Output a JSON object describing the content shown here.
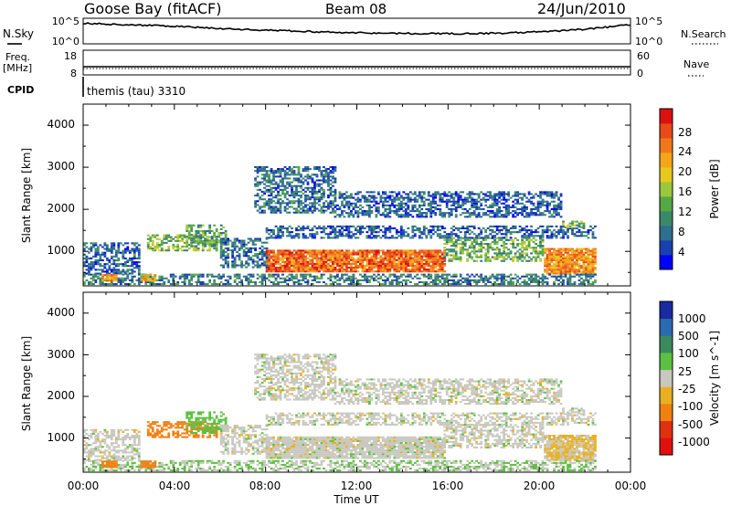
{
  "header": {
    "station": "Goose Bay (fitACF)",
    "beam": "Beam 08",
    "date": "24/Jun/2010"
  },
  "status_panel": {
    "nsky_label": "N.Sky",
    "nsky_ticks": [
      "10^5",
      "10^0"
    ],
    "nsearch_label": "N.Search",
    "nsearch_ticks": [
      "10^5",
      "10^0"
    ],
    "freq_label": "Freq.",
    "freq_unit": "[MHz]",
    "freq_ticks": [
      "18",
      "8"
    ],
    "nave_label": "Nave",
    "nave_ticks": [
      "60",
      "0"
    ],
    "cpid_label": "CPID",
    "cpid_value": "themis (tau) 3310"
  },
  "power_panel": {
    "ylabel": "Slant Range [km]",
    "yticks": [
      "4000",
      "3000",
      "2000",
      "1000"
    ],
    "colorbar_label": "Power [dB]",
    "colorbar_ticks": [
      "28",
      "24",
      "20",
      "16",
      "12",
      "8",
      "4"
    ],
    "colors": [
      "#0000ff",
      "#1a40b0",
      "#2e6e8e",
      "#3a8a6a",
      "#56a845",
      "#9bc83a",
      "#e6c81e",
      "#f5a51a",
      "#f07818",
      "#e84a18",
      "#dc1010"
    ]
  },
  "velocity_panel": {
    "ylabel": "Slant Range [km]",
    "yticks": [
      "4000",
      "3000",
      "2000",
      "1000"
    ],
    "colorbar_label": "Velocity [m s^-1]",
    "colorbar_ticks": [
      "1000",
      "500",
      "100",
      "25",
      "-25",
      "-100",
      "-500",
      "-1000"
    ],
    "colors": [
      "#1a2aa0",
      "#2a6ab0",
      "#3a8a5a",
      "#5cc040",
      "#c8c8c0",
      "#e8b020",
      "#f08010",
      "#e03010",
      "#e01010"
    ]
  },
  "x_axis": {
    "ticks": [
      "00:00",
      "04:00",
      "08:00",
      "12:00",
      "16:00",
      "20:00",
      "00:00"
    ],
    "label": "Time UT"
  },
  "chart_data": {
    "type": "heatmap",
    "title": "Goose Bay (fitACF) Beam 08 24/Jun/2010",
    "xlabel": "Time UT",
    "ylabel": "Slant Range [km]",
    "xlim": [
      0,
      24
    ],
    "ylim": [
      180,
      4500
    ],
    "power_scale": [
      0,
      30
    ],
    "velocity_scale": [
      -1000,
      1000
    ],
    "nsky_relative": [
      0.8,
      0.75,
      0.7,
      0.62,
      0.55,
      0.5,
      0.45,
      0.42,
      0.4,
      0.4,
      0.42,
      0.48,
      0.58,
      0.75
    ],
    "freq_mhz": 10.5,
    "nave": 10,
    "echo_regions": [
      {
        "t0": 8.0,
        "t1": 15.8,
        "r0": 500,
        "r1": 1000,
        "power": 24,
        "velocity": 0
      },
      {
        "t0": 15.8,
        "t1": 20.2,
        "r0": 750,
        "r1": 1300,
        "power": 12,
        "velocity": 0
      },
      {
        "t0": 20.2,
        "t1": 22.5,
        "r0": 450,
        "r1": 1050,
        "power": 22,
        "velocity": -30
      },
      {
        "t0": 2.8,
        "t1": 5.8,
        "r0": 1000,
        "r1": 1400,
        "power": 14,
        "velocity": -200
      },
      {
        "t0": 4.5,
        "t1": 6.2,
        "r0": 1100,
        "r1": 1600,
        "power": 11,
        "velocity": 60
      },
      {
        "t0": 0.0,
        "t1": 2.5,
        "r0": 450,
        "r1": 1200,
        "power": 6,
        "velocity": 0
      },
      {
        "t0": 6.0,
        "t1": 8.0,
        "r0": 600,
        "r1": 1300,
        "power": 7,
        "velocity": 0
      },
      {
        "t0": 8.0,
        "t1": 22.5,
        "r0": 1300,
        "r1": 1600,
        "power": 6,
        "velocity": 0
      },
      {
        "t0": 7.5,
        "t1": 11.0,
        "r0": 1900,
        "r1": 3000,
        "power": 7,
        "velocity": 0
      },
      {
        "t0": 11.0,
        "t1": 21.0,
        "r0": 1800,
        "r1": 2400,
        "power": 6,
        "velocity": 0
      },
      {
        "t0": 0.0,
        "t1": 22.5,
        "r0": 200,
        "r1": 450,
        "power": 8,
        "velocity": 20
      },
      {
        "t0": 0.8,
        "t1": 1.5,
        "r0": 280,
        "r1": 420,
        "power": 22,
        "velocity": -250
      },
      {
        "t0": 2.5,
        "t1": 3.2,
        "r0": 280,
        "r1": 420,
        "power": 20,
        "velocity": -250
      },
      {
        "t0": 21.0,
        "t1": 22.0,
        "r0": 1550,
        "r1": 1700,
        "power": 14,
        "velocity": 0
      }
    ]
  }
}
